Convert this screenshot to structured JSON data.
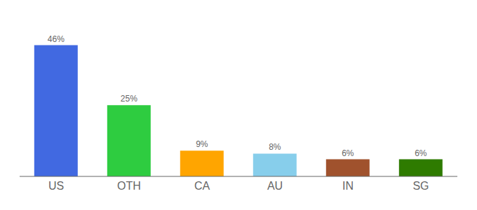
{
  "chart_data": {
    "type": "bar",
    "categories": [
      "US",
      "OTH",
      "CA",
      "AU",
      "IN",
      "SG"
    ],
    "values": [
      46,
      25,
      9,
      8,
      6,
      6
    ],
    "value_labels": [
      "46%",
      "25%",
      "9%",
      "8%",
      "6%",
      "6%"
    ],
    "colors": [
      "#4169E1",
      "#2ECC40",
      "#FFA500",
      "#87CEEB",
      "#A0522D",
      "#2E7B00"
    ],
    "ylim": [
      0,
      54
    ],
    "data_labels": true,
    "grid": false,
    "tick_labels": "x"
  }
}
